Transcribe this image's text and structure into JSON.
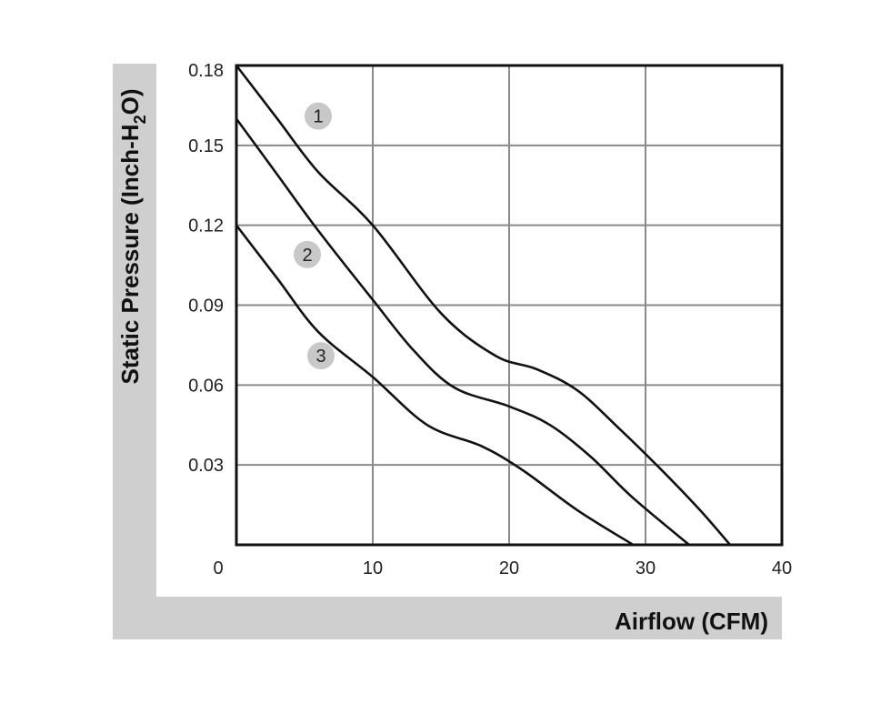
{
  "chart_data": {
    "type": "line",
    "xlabel": "Airflow (CFM)",
    "ylabel": {
      "prefix": "Static Pressure (Inch-H",
      "subscript": "2",
      "suffix": "O)"
    },
    "xlim": [
      0,
      40
    ],
    "ylim": [
      0,
      0.18
    ],
    "x_ticks": [
      "0",
      "10",
      "20",
      "30",
      "40"
    ],
    "y_ticks": [
      "0.03",
      "0.06",
      "0.09",
      "0.12",
      "0.15",
      "0.18"
    ],
    "grid": true,
    "series": [
      {
        "label": "1",
        "label_at": [
          6,
          0.161
        ],
        "x": [
          0,
          3,
          6,
          10,
          15,
          19,
          22,
          25,
          28,
          31,
          34,
          36.2
        ],
        "y": [
          0.18,
          0.16,
          0.14,
          0.12,
          0.087,
          0.071,
          0.066,
          0.058,
          0.044,
          0.029,
          0.013,
          0.0
        ]
      },
      {
        "label": "2",
        "label_at": [
          5.2,
          0.109
        ],
        "x": [
          0,
          3,
          6,
          10,
          13,
          16,
          20,
          23,
          26,
          29,
          33.2
        ],
        "y": [
          0.16,
          0.139,
          0.118,
          0.092,
          0.073,
          0.059,
          0.052,
          0.045,
          0.033,
          0.018,
          0.0
        ]
      },
      {
        "label": "3",
        "label_at": [
          6.2,
          0.071
        ],
        "x": [
          0,
          3,
          6,
          10,
          14,
          18,
          21,
          25,
          29.1
        ],
        "y": [
          0.12,
          0.1,
          0.08,
          0.063,
          0.045,
          0.037,
          0.028,
          0.013,
          0.0
        ]
      }
    ]
  }
}
